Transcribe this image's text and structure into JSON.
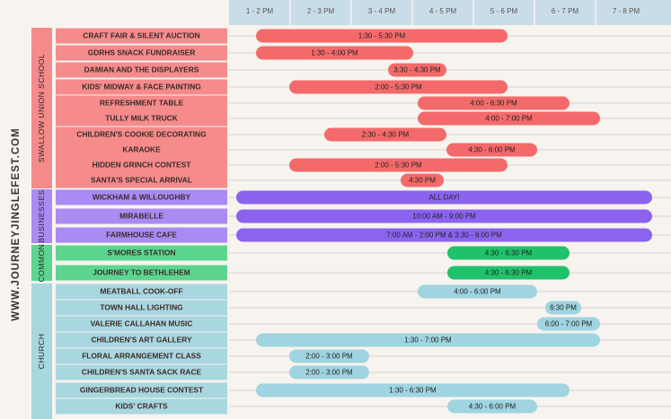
{
  "header": {
    "site": "WWW.JOURNEYJINGLEFEST.COM",
    "time_columns": [
      "1 - 2 PM",
      "2 - 3 PM",
      "3 - 4 PM",
      "4 - 5 PM",
      "5 - 6 PM",
      "6 - 7 PM",
      "7 - 8 PM"
    ]
  },
  "groups": [
    {
      "label": "SWALLOW UNION SCHOOL",
      "events": [
        {
          "name": "CRAFT FAIR & SILENT AUCTION",
          "time": "1:30 - 5:30 PM"
        },
        {
          "name": "GDRHS SNACK FUNDRAISER",
          "time": "1:30 - 4:00 PM"
        },
        {
          "name": "DAMIAN AND THE DISPLAYERS",
          "time": "3:30 - 4:30 PM"
        },
        {
          "name": "KIDS' MIDWAY & FACE PAINTING",
          "time": "2:00 - 5:30 PM"
        },
        {
          "name": "REFRESHMENT TABLE",
          "time": "4:00 - 6:30 PM"
        },
        {
          "name": "TULLY MILK TRUCK",
          "time": "4:00 - 7:00 PM"
        },
        {
          "name": "CHILDREN'S COOKIE DECORATING",
          "time": "2:30 - 4:30 PM"
        },
        {
          "name": "KARAOKE",
          "time": "4:30 - 6:00 PM"
        },
        {
          "name": "HIDDEN GRINCH CONTEST",
          "time": "2:00 - 5:30 PM"
        },
        {
          "name": "SANTA'S SPECIAL ARRIVAL",
          "time": "4:30 PM"
        }
      ]
    },
    {
      "label": "BUSINESSES",
      "events": [
        {
          "name": "WICKHAM & WILLOUGHBY",
          "time": "ALL DAY!"
        },
        {
          "name": "MIRABELLE",
          "time": "10:00 AM - 9:00 PM"
        },
        {
          "name": "FARMHOUSE CAFE",
          "time": "7:00 AM - 2:00 PM & 3:30 - 8:00 PM"
        }
      ]
    },
    {
      "label": "COMMON",
      "events": [
        {
          "name": "S'MORES STATION",
          "time": "4:30 - 6:30 PM"
        },
        {
          "name": "JOURNEY TO BETHLEHEM",
          "time": "4:30 - 6:30 PM"
        }
      ]
    },
    {
      "label": "CHURCH",
      "events": [
        {
          "name": "MEATBALL COOK-OFF",
          "time": "4:00 - 6:00 PM"
        },
        {
          "name": "TOWN HALL LIGHTING",
          "time": "6:30 PM"
        },
        {
          "name": "VALERIE CALLAHAN MUSIC",
          "time": "6:00 - 7:00 PM"
        },
        {
          "name": "CHILDREN'S ART GALLERY",
          "time": "1:30 - 7:00 PM"
        },
        {
          "name": "FLORAL ARRANGEMENT CLASS",
          "time": "2:00 - 3:00 PM"
        },
        {
          "name": "CHILDREN'S SANTA SACK RACE",
          "time": "2:00 - 3:00 PM"
        },
        {
          "name": "GINGERBREAD HOUSE CONTEST",
          "time": "1:30 - 6:30 PM"
        },
        {
          "name": "KIDS' CRAFTS",
          "time": "4:30 - 6:00 PM"
        }
      ]
    }
  ]
}
